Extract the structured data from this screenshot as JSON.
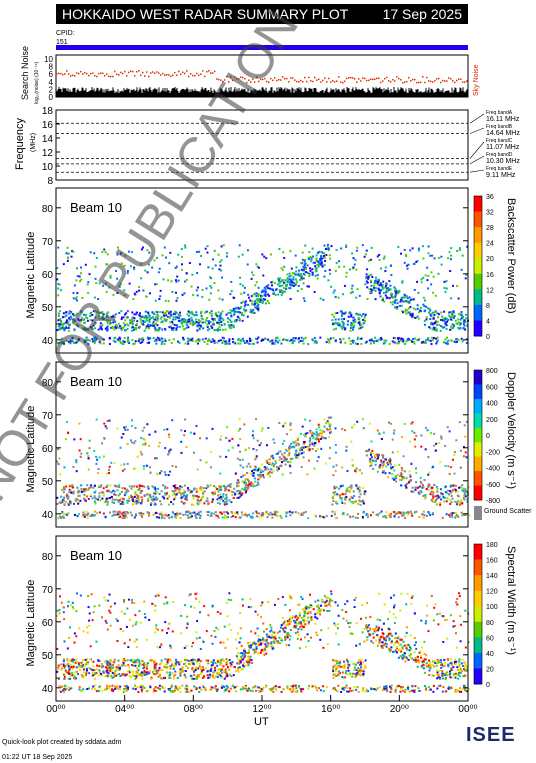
{
  "header": {
    "title": "HOKKAIDO WEST RADAR SUMMARY PLOT",
    "date": "17 Sep 2025",
    "cpid_label": "CPID:",
    "cpid_value": "151"
  },
  "noise_panel": {
    "ylabel": "Search Noise",
    "ylabel_small": "log₁₀(noise) (10⁻¹⁶)",
    "right_label": "Sky Noise",
    "ticks": [
      "10",
      "8",
      "6",
      "4",
      "2",
      "0"
    ]
  },
  "freq_panel": {
    "ylabel": "Frequency",
    "unit": "(MHz)",
    "ticks": [
      "18",
      "16",
      "14",
      "12",
      "10",
      "8"
    ],
    "bands": [
      {
        "name": "Freq bandA",
        "value": "16.11 MHz",
        "mhz": 16.11
      },
      {
        "name": "Freq bandB",
        "value": "14.64 MHz",
        "mhz": 14.64
      },
      {
        "name": "Freq bandC",
        "value": "11.07 MHz",
        "mhz": 11.07
      },
      {
        "name": "Freq bandD",
        "value": "10.30 MHz",
        "mhz": 10.3
      },
      {
        "name": "Freq bandE",
        "value": "9.11 MHz",
        "mhz": 9.11
      }
    ]
  },
  "panels": [
    {
      "beam": "Beam 10",
      "ylabel": "Magnetic Latitude",
      "cbar_label": "Backscatter Power (dB)",
      "cbar_ticks": [
        "36",
        "32",
        "28",
        "24",
        "20",
        "16",
        "12",
        "8",
        "4",
        "0"
      ],
      "cbar_colors": [
        "#ff0000",
        "#ff5500",
        "#ff9900",
        "#ffcc00",
        "#ccee00",
        "#55cc00",
        "#00bb88",
        "#0066ff",
        "#2200ff"
      ]
    },
    {
      "beam": "Beam 10",
      "ylabel": "Magnetic Latitude",
      "cbar_label": "Doppler Velocity (m s⁻¹)",
      "cbar_ticks": [
        "800",
        "600",
        "400",
        "200",
        "0",
        "-200",
        "-400",
        "-600",
        "-800"
      ],
      "cbar_colors": [
        "#2200cc",
        "#0044ff",
        "#00aaff",
        "#00ddaa",
        "#66ee00",
        "#ddee00",
        "#ffaa00",
        "#ff5500",
        "#ff0000"
      ],
      "ground_label": "Ground Scatter"
    },
    {
      "beam": "Beam 10",
      "ylabel": "Magnetic Latitude",
      "cbar_label": "Spectral Width (m s⁻¹)",
      "cbar_ticks": [
        "180",
        "160",
        "140",
        "120",
        "100",
        "80",
        "60",
        "40",
        "20",
        "0"
      ],
      "cbar_colors": [
        "#ff0000",
        "#ff5500",
        "#ff9900",
        "#ffcc00",
        "#ccee00",
        "#55cc00",
        "#00bb88",
        "#0066ff",
        "#2200ff"
      ]
    }
  ],
  "lat_ticks": [
    "80",
    "70",
    "60",
    "50",
    "40"
  ],
  "x_ticks": [
    "00⁰⁰",
    "04⁰⁰",
    "08⁰⁰",
    "12⁰⁰",
    "16⁰⁰",
    "20⁰⁰",
    "00⁰⁰"
  ],
  "xlabel": "UT",
  "footer": {
    "line1": "Quick-look plot created by sddata.adm",
    "line2": "01:22 UT 18 Sep 2025"
  },
  "logo_text": "ISEE",
  "watermark": "NOT FOR PUBLICATION",
  "chart_data": {
    "type": "heatmap",
    "title": "HOKKAIDO WEST RADAR SUMMARY PLOT",
    "x_range_hours": [
      0,
      24
    ],
    "xlabel": "UT",
    "ylabel": "Magnetic Latitude",
    "ylim": [
      36,
      86
    ],
    "series": [
      {
        "name": "Backscatter Power (dB)",
        "range": [
          0,
          36
        ]
      },
      {
        "name": "Doppler Velocity (m s⁻¹)",
        "range": [
          -800,
          800
        ]
      },
      {
        "name": "Spectral Width (m s⁻¹)",
        "range": [
          0,
          180
        ]
      }
    ],
    "frequency_bands_mhz": [
      16.11,
      14.64,
      11.07,
      10.3,
      9.11
    ]
  }
}
